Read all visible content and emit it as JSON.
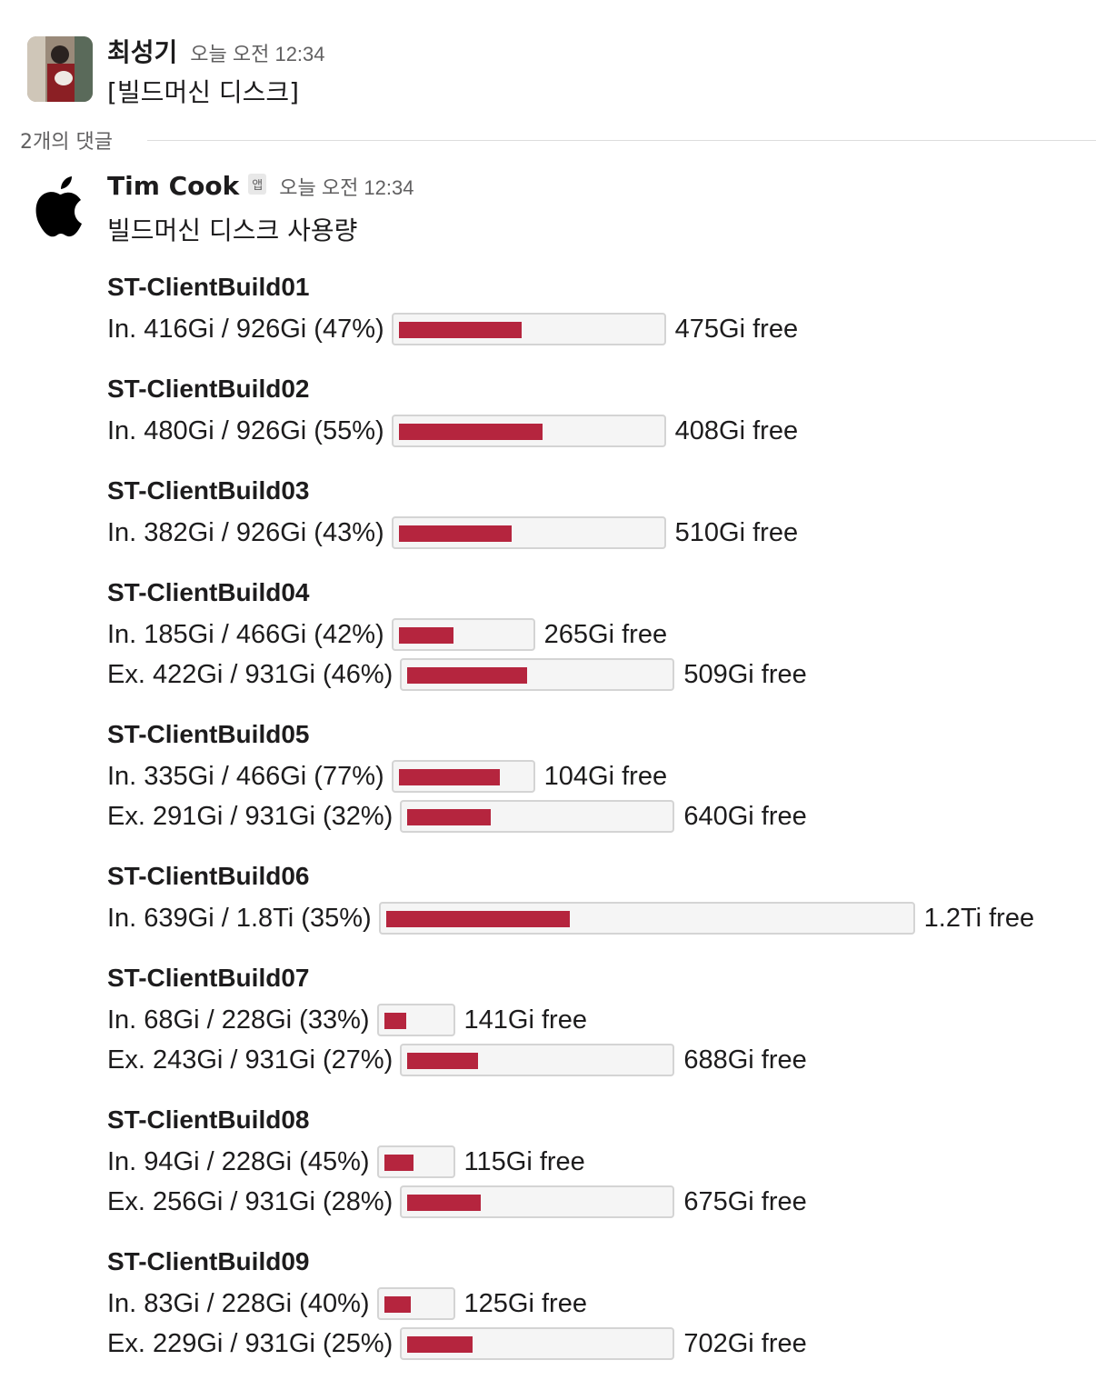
{
  "message1": {
    "author": "최성기",
    "time": "오늘 오전 12:34",
    "text": "[빌드머신 디스크]"
  },
  "thread": {
    "reply_count_label": "2개의 댓글"
  },
  "message2": {
    "author": "Tim Cook",
    "badge": "앱",
    "time": "오늘 오전 12:34",
    "text": "빌드머신 디스크 사용량"
  },
  "colors": {
    "bar_fill": "#b5253e",
    "bar_bg": "#f5f5f5"
  },
  "servers": [
    {
      "name": "ST-ClientBuild01",
      "disks": [
        {
          "label": "In. 416Gi / 926Gi (47%)",
          "used_fraction": 0.47,
          "free": "475Gi free"
        }
      ]
    },
    {
      "name": "ST-ClientBuild02",
      "disks": [
        {
          "label": "In. 480Gi / 926Gi (55%)",
          "used_fraction": 0.55,
          "free": "408Gi free"
        }
      ]
    },
    {
      "name": "ST-ClientBuild03",
      "disks": [
        {
          "label": "In. 382Gi / 926Gi (43%)",
          "used_fraction": 0.43,
          "free": "510Gi free"
        }
      ]
    },
    {
      "name": "ST-ClientBuild04",
      "disks": [
        {
          "label": "In. 185Gi / 466Gi (42%)",
          "used_fraction": 0.42,
          "free": "265Gi free"
        },
        {
          "label": "Ex. 422Gi / 931Gi (46%)",
          "used_fraction": 0.46,
          "free": "509Gi free"
        }
      ]
    },
    {
      "name": "ST-ClientBuild05",
      "disks": [
        {
          "label": "In. 335Gi / 466Gi (77%)",
          "used_fraction": 0.77,
          "free": "104Gi free"
        },
        {
          "label": "Ex. 291Gi / 931Gi (32%)",
          "used_fraction": 0.32,
          "free": "640Gi free"
        }
      ]
    },
    {
      "name": "ST-ClientBuild06",
      "disks": [
        {
          "label": "In. 639Gi / 1.8Ti (35%)",
          "used_fraction": 0.35,
          "free": "1.2Ti free"
        }
      ]
    },
    {
      "name": "ST-ClientBuild07",
      "disks": [
        {
          "label": "In. 68Gi / 228Gi (33%)",
          "used_fraction": 0.33,
          "free": "141Gi free"
        },
        {
          "label": "Ex. 243Gi / 931Gi (27%)",
          "used_fraction": 0.27,
          "free": "688Gi free"
        }
      ]
    },
    {
      "name": "ST-ClientBuild08",
      "disks": [
        {
          "label": "In. 94Gi / 228Gi (45%)",
          "used_fraction": 0.45,
          "free": "115Gi free"
        },
        {
          "label": "Ex. 256Gi / 931Gi (28%)",
          "used_fraction": 0.28,
          "free": "675Gi free"
        }
      ]
    },
    {
      "name": "ST-ClientBuild09",
      "disks": [
        {
          "label": "In. 83Gi / 228Gi (40%)",
          "used_fraction": 0.4,
          "free": "125Gi free"
        },
        {
          "label": "Ex. 229Gi / 931Gi (25%)",
          "used_fraction": 0.25,
          "free": "702Gi free"
        }
      ]
    }
  ]
}
